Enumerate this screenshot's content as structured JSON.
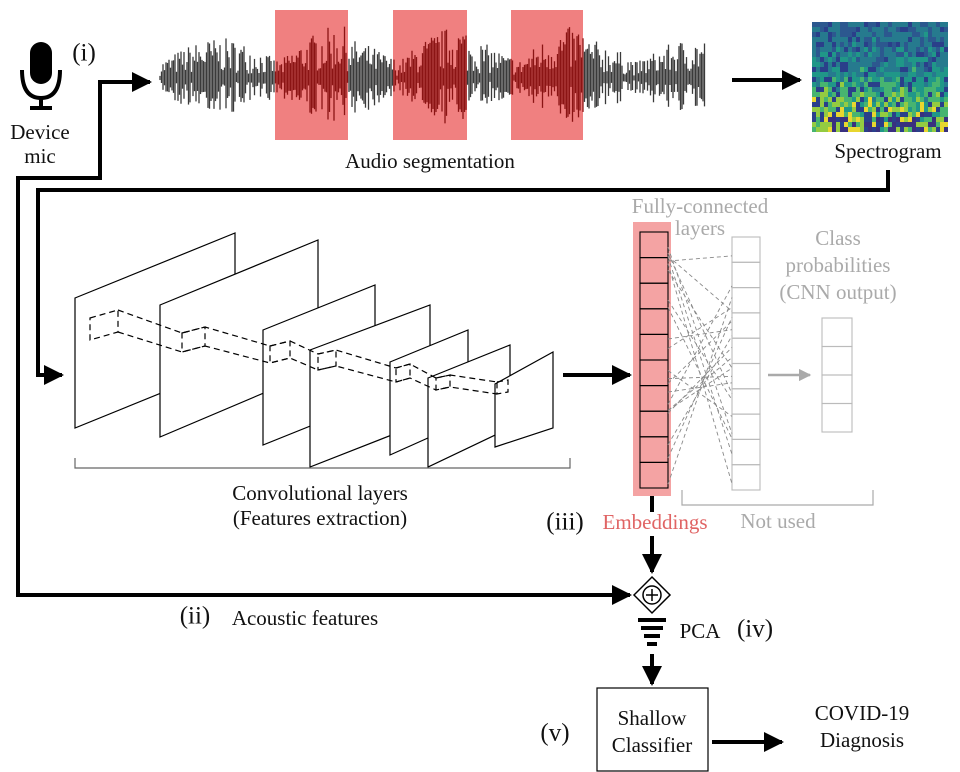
{
  "mic": {
    "marker": "(i)",
    "lines": [
      "Device",
      "mic"
    ]
  },
  "audio": {
    "label": "Audio segmentation"
  },
  "spectrogram": {
    "label": "Spectrogram"
  },
  "fully_connected": {
    "lines": [
      "Fully-connected",
      "layers"
    ]
  },
  "class_probabilities": {
    "lines": [
      "Class",
      "probabilities",
      "(CNN output)"
    ]
  },
  "convolutional": {
    "lines": [
      "Convolutional layers",
      "(Features extraction)"
    ]
  },
  "embeddings": {
    "marker": "(iii)",
    "label": "Embeddings"
  },
  "not_used": {
    "label": "Not used"
  },
  "acoustic": {
    "marker": "(ii)",
    "label": "Acoustic features"
  },
  "pca": {
    "label": "PCA",
    "marker": "(iv)"
  },
  "classifier": {
    "marker": "(v)",
    "lines": [
      "Shallow",
      "Classifier"
    ]
  },
  "diagnosis": {
    "lines": [
      "COVID-19",
      "Diagnosis"
    ]
  }
}
